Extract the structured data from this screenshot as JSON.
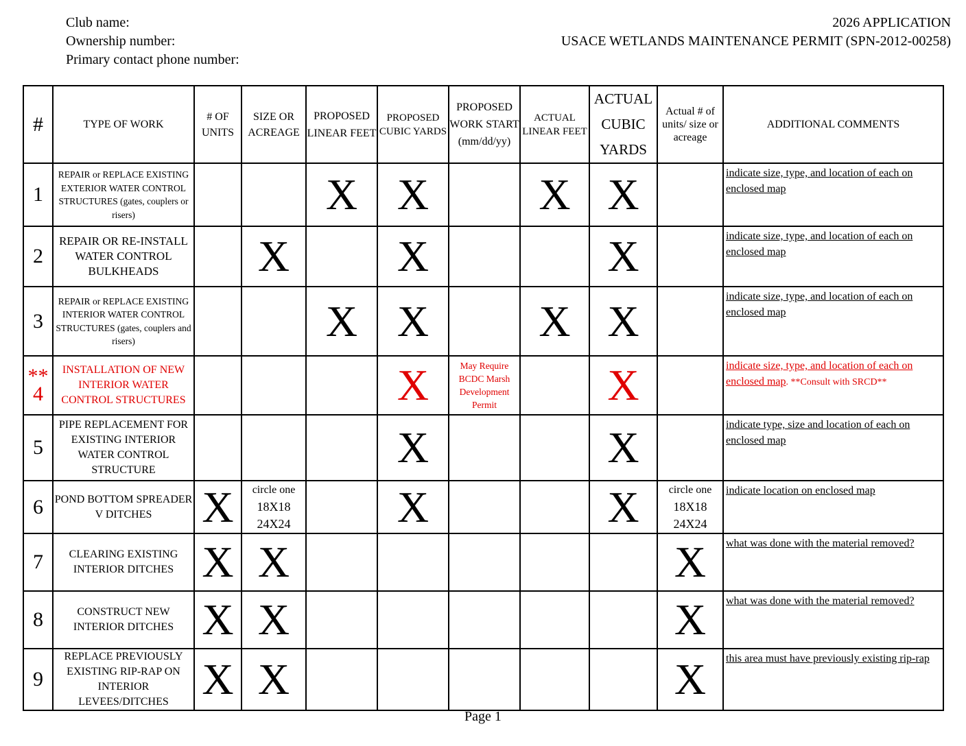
{
  "header": {
    "left": [
      "Club name:",
      "Ownership number:",
      "Primary contact phone number:"
    ],
    "right": [
      "2026 APPLICATION",
      "USACE WETLANDS MAINTENANCE PERMIT (SPN-2012-00258)"
    ]
  },
  "columns": [
    "#",
    "TYPE OF WORK",
    "# OF UNITS",
    "SIZE OR ACREAGE",
    "PROPOSED LINEAR FEET",
    "PROPOSED CUBIC YARDS",
    "PROPOSED WORK START (mm/dd/yy)",
    "ACTUAL LINEAR FEET",
    "ACTUAL CUBIC YARDS",
    "Actual # of units/ size or acreage",
    "ADDITIONAL COMMENTS"
  ],
  "rows": [
    {
      "num": "1",
      "type": "REPAIR or REPLACE EXISTING EXTERIOR WATER CONTROL STRUCTURES (gates, couplers or risers)",
      "cells": [
        "",
        "",
        "X",
        "X",
        "",
        "X",
        "X",
        ""
      ],
      "comment": "indicate size, type, and location of each on enclosed map"
    },
    {
      "num": "2",
      "type": "REPAIR OR RE-INSTALL WATER CONTROL BULKHEADS",
      "cells": [
        "",
        "X",
        "",
        "X",
        "",
        "",
        "X",
        ""
      ],
      "comment": "indicate size, type, and location of each on enclosed map"
    },
    {
      "num": "3",
      "type": "REPAIR or REPLACE EXISTING INTERIOR WATER CONTROL STRUCTURES (gates, couplers and risers)",
      "cells": [
        "",
        "",
        "X",
        "X",
        "",
        "X",
        "X",
        ""
      ],
      "comment": "indicate size, type, and location of each on enclosed map"
    },
    {
      "num": "** 4",
      "type": "INSTALLATION OF NEW INTERIOR WATER CONTROL STRUCTURES",
      "cells": [
        "",
        "",
        "",
        "X",
        "May Require BCDC Marsh Development Permit",
        "",
        "X",
        ""
      ],
      "comment": "indicate size, type, and location of each on enclosed map",
      "comment_extra": ". **Consult with SRCD**",
      "highlight": "#e00000"
    },
    {
      "num": "5",
      "type": "PIPE REPLACEMENT FOR EXISTING INTERIOR WATER CONTROL STRUCTURE",
      "cells": [
        "",
        "",
        "",
        "X",
        "",
        "",
        "X",
        ""
      ],
      "comment": "indicate type, size and location of each on enclosed map"
    },
    {
      "num": "6",
      "type": "POND BOTTOM SPREADER V DITCHES",
      "cells": [
        "X",
        "circle one 18X18 24X24",
        "",
        "X",
        "",
        "",
        "X",
        "circle one 18X18 24X24"
      ],
      "comment": "indicate location on enclosed map"
    },
    {
      "num": "7",
      "type": "CLEARING EXISTING INTERIOR DITCHES",
      "cells": [
        "X",
        "X",
        "",
        "",
        "",
        "",
        "",
        "X"
      ],
      "comment": "what was done with the material removed?"
    },
    {
      "num": "8",
      "type": "CONSTRUCT NEW INTERIOR DITCHES",
      "cells": [
        "X",
        "X",
        "",
        "",
        "",
        "",
        "",
        "X"
      ],
      "comment": "what was done with the material removed?"
    },
    {
      "num": "9",
      "type": "REPLACE PREVIOUSLY EXISTING RIP-RAP ON INTERIOR LEVEES/DITCHES",
      "cells": [
        "X",
        "X",
        "",
        "",
        "",
        "",
        "",
        "X"
      ],
      "comment": "this area must have previously existing rip-rap"
    }
  ],
  "footer": "Page 1"
}
